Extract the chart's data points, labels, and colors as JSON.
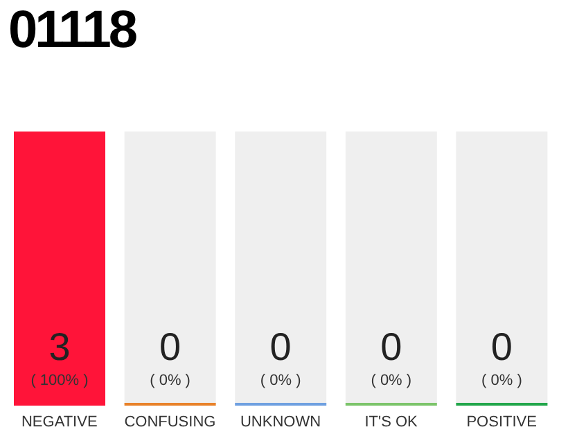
{
  "chart_data": {
    "type": "bar",
    "title": "01118",
    "categories": [
      "NEGATIVE",
      "CONFUSING",
      "UNKNOWN",
      "IT'S OK",
      "POSITIVE"
    ],
    "values": [
      3,
      0,
      0,
      0,
      0
    ],
    "colors": [
      "#ff1439",
      "#e8822a",
      "#6fa0e0",
      "#7cc46a",
      "#22a64a"
    ],
    "data_labels": true,
    "annotations": [
      "( 100% )",
      "( 0% )",
      "( 0% )",
      "( 0% )",
      "( 0% )"
    ]
  }
}
